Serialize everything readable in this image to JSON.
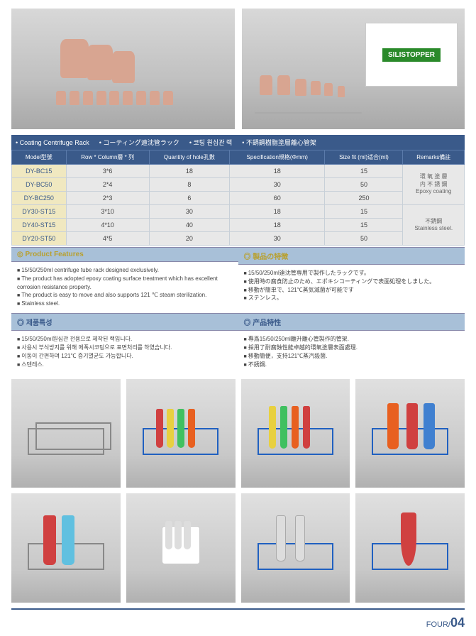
{
  "topProduct": {
    "boxLabel": "SILISTOPPER"
  },
  "titleBar": {
    "items": [
      "Coating Centrifuge Rack",
      "コーティング遠沈管ラック",
      "코팅 원심관 랙",
      "不銹鋼樹脂塗層離心管架"
    ]
  },
  "specTable": {
    "headers": [
      "Model型號",
      "Row * Column層 * 列",
      "Quantity of hole孔數",
      "Specification規格(Φmm)",
      "Size fit (ml)适合(ml)",
      "Remarks備註"
    ],
    "rows": [
      {
        "model": "DY-BC15",
        "rc": "3*6",
        "qty": "18",
        "spec": "18",
        "size": "15",
        "remarks_group": 0
      },
      {
        "model": "DY-BC50",
        "rc": "2*4",
        "qty": "8",
        "spec": "30",
        "size": "50",
        "remarks_group": 0
      },
      {
        "model": "DY-BC250",
        "rc": "2*3",
        "qty": "6",
        "spec": "60",
        "size": "250",
        "remarks_group": 0
      },
      {
        "model": "DY30-ST15",
        "rc": "3*10",
        "qty": "30",
        "spec": "18",
        "size": "15",
        "remarks_group": 1
      },
      {
        "model": "DY40-ST15",
        "rc": "4*10",
        "qty": "40",
        "spec": "18",
        "size": "15",
        "remarks_group": 1
      },
      {
        "model": "DY20-ST50",
        "rc": "4*5",
        "qty": "20",
        "spec": "30",
        "size": "50",
        "remarks_group": 1
      }
    ],
    "remarksGroups": [
      "環 氧 塗 層\n内 不 銹 鋼\nEpoxy coating",
      "不銹鋼\nStainless steel."
    ]
  },
  "features": {
    "en": {
      "header": "Product  Features",
      "items": [
        "15/50/250ml centrifuge tube rack designed exclusively.",
        "The product has adopted epoxy coating surface treatment which has excellent corrosion resistance property.",
        "The product is easy to move and also supports 121 ℃ steam sterilization.",
        "Stainless steel."
      ]
    },
    "jp": {
      "header": "製品の特徴",
      "items": [
        "15/50/250ml遠沈管専用で製作したラックです。",
        "使用時の腐食防止のため、エポキシコーティングで表面処理をしました。",
        "移動が簡単で、121℃蒸気滅菌が可能です",
        "ステンレス。"
      ]
    },
    "kr": {
      "header": "제품특성",
      "items": [
        "15/50/250ml원심관 전용으로 제작된 랙입니다.",
        "사용시 부식방지를 위해 에폭시코팅으로 표면처리를 하였습니다.",
        "이동이 간편하며 121℃ 증기멸균도 가능합니다.",
        "스텐레스."
      ]
    },
    "cn": {
      "header": "产品特性",
      "items": [
        "專爲15/50/250ml離升離心管製作的管架.",
        "採用了耐腐蝕性能卓越的環氧塗層表面處理.",
        "移動簡便，支持121℃蒸汽殺菌.",
        "不銹鋼."
      ]
    }
  },
  "footer": {
    "label": "FOUR/",
    "num": "04"
  },
  "colors": {
    "headerBlue": "#3a5a8a",
    "lightBlue": "#a8c0d8",
    "modelYellow": "#f0e8c0",
    "rackBlue": "#2060c0"
  }
}
